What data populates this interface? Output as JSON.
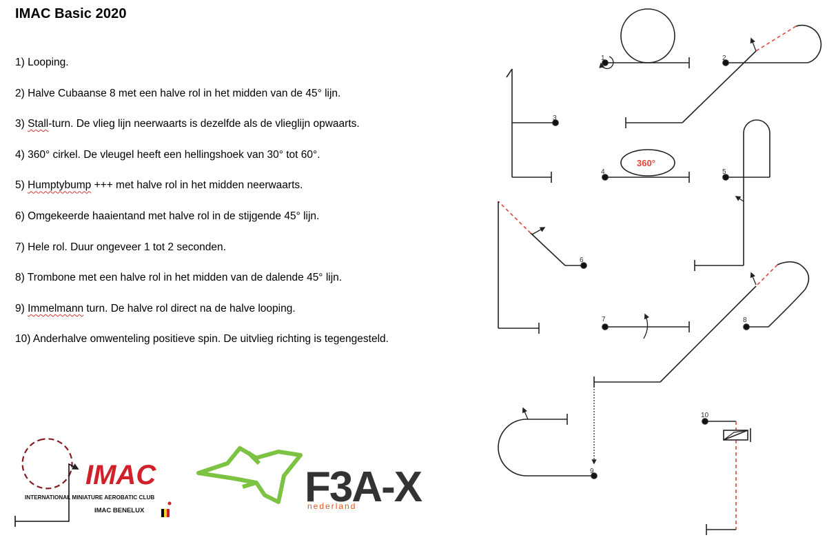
{
  "title": "IMAC Basic 2020",
  "items": [
    {
      "pre": "1) Looping.",
      "sq": "",
      "post": ""
    },
    {
      "pre": "2) Halve Cubaanse 8 met een halve rol in het midden van de 45° lijn.",
      "sq": "",
      "post": ""
    },
    {
      "pre": "3) ",
      "sq": "Stall",
      "post": "-turn. De vlieg lijn neerwaarts is dezelfde als de vlieglijn opwaarts."
    },
    {
      "pre": "4) 360° cirkel. De vleugel heeft een hellingshoek van 30° tot 60°.",
      "sq": "",
      "post": ""
    },
    {
      "pre": "5) ",
      "sq": "Humptybump",
      "post": " +++ met halve rol in het midden neerwaarts."
    },
    {
      "pre": "6) Omgekeerde haaientand met halve rol in de stijgende 45° lijn.",
      "sq": "",
      "post": ""
    },
    {
      "pre": "7) Hele rol. Duur ongeveer 1 tot 2 seconden.",
      "sq": "",
      "post": ""
    },
    {
      "pre": "8) Trombone met een halve rol in het midden van de dalende 45° lijn.",
      "sq": "",
      "post": ""
    },
    {
      "pre": "9) ",
      "sq": "Immelmann",
      "post": " turn. De halve rol direct na de halve looping."
    },
    {
      "pre": "10) Anderhalve omwenteling positieve spin. De uitvlieg richting is tegengesteld.",
      "sq": "",
      "post": ""
    }
  ],
  "diagram_labels": [
    "1",
    "2",
    "3",
    "4",
    "5",
    "6",
    "7",
    "8",
    "9",
    "10"
  ],
  "circle_label": "360°",
  "imac_logo": {
    "name": "IMAC",
    "club": "INTERNATIONAL MINIATURE AEROBATIC CLUB",
    "region": "IMAC BENELUX"
  },
  "f3ax_logo": {
    "name": "F3A-X",
    "sub": "nederland"
  },
  "colors": {
    "red_dash": "#e0443a",
    "imac_red": "#d0202a",
    "f3a_green": "#7cc243",
    "f3a_dark": "#333333",
    "f3a_orange": "#e2571e"
  }
}
